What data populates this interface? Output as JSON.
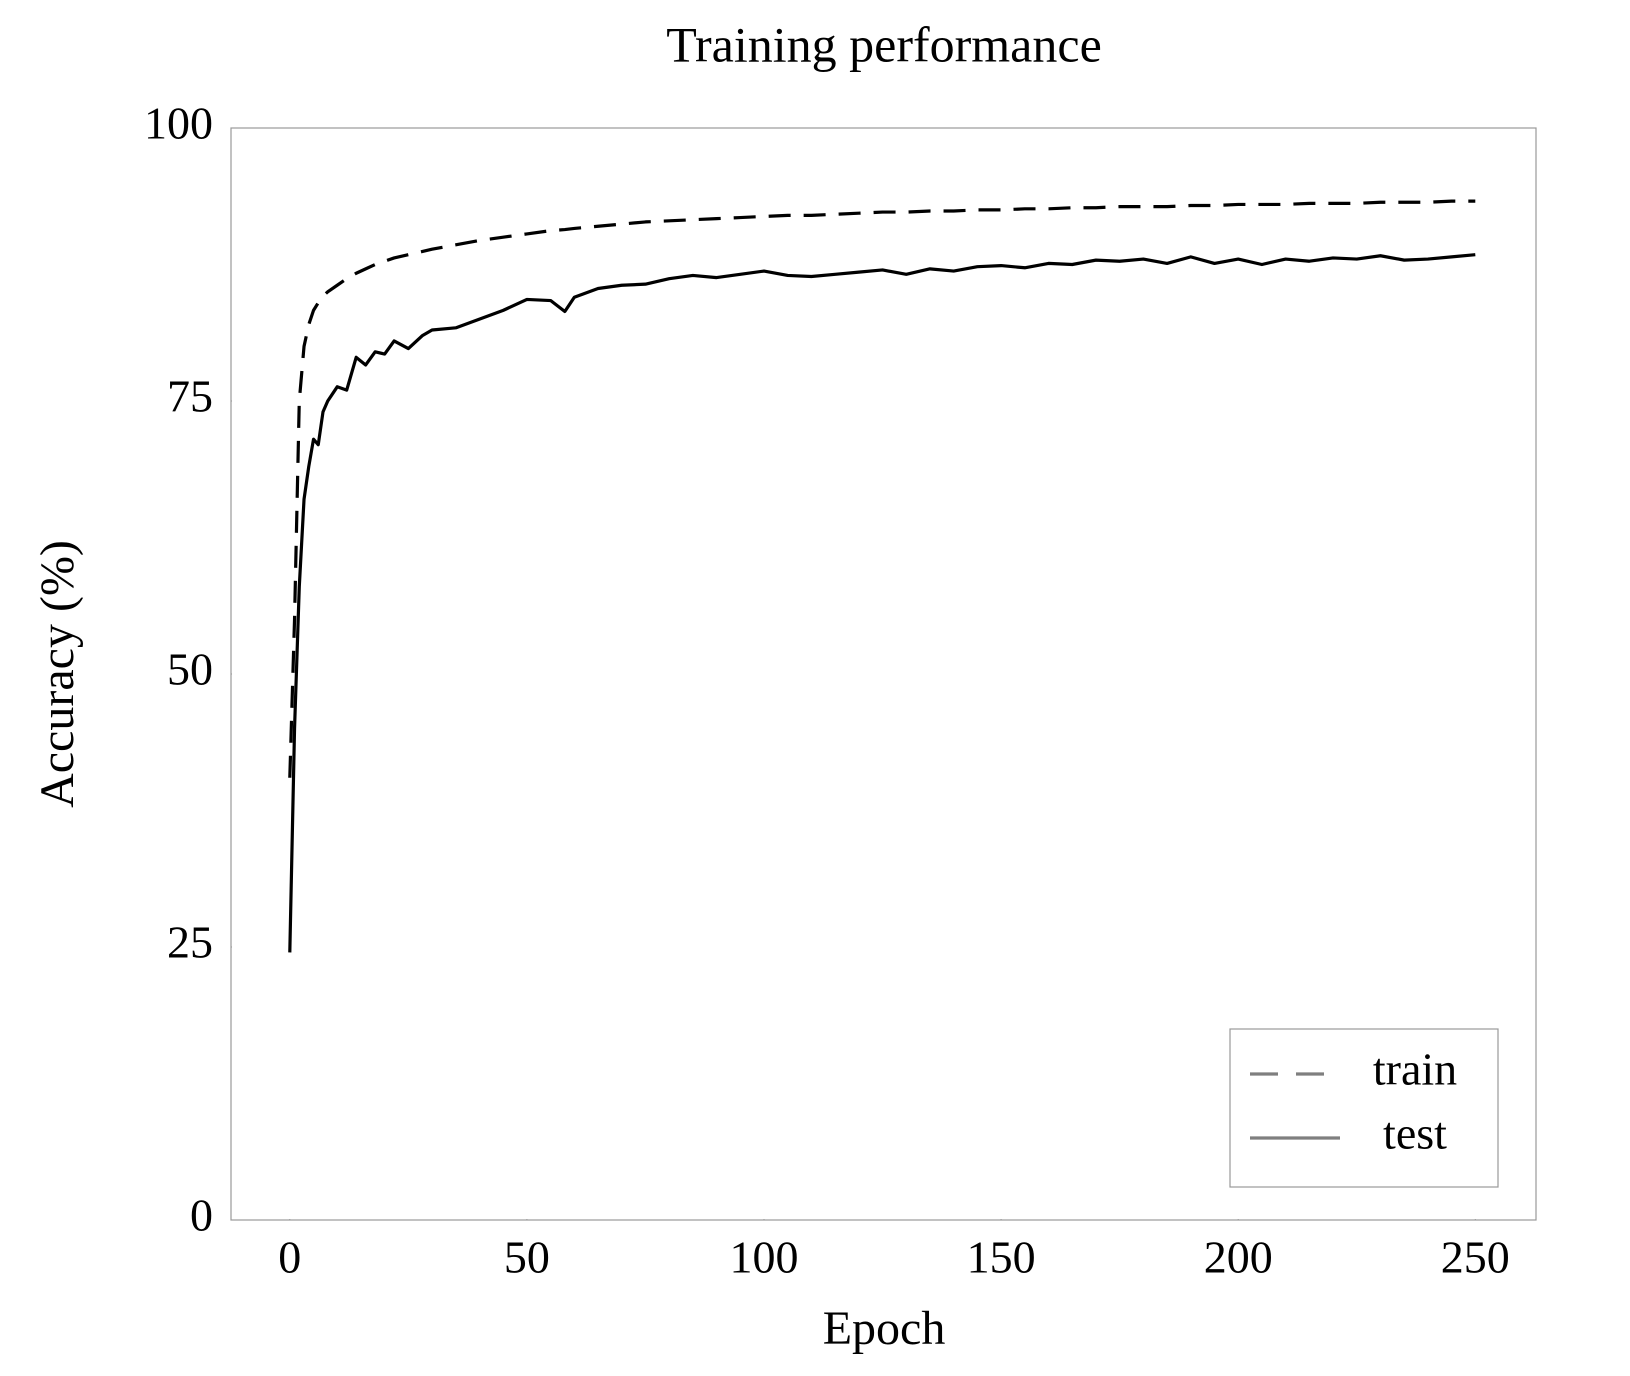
{
  "chart_data": {
    "type": "line",
    "title": "Training performance",
    "x_label": "Epoch",
    "y_label": "Accuracy (%)",
    "x": [
      0,
      1,
      2,
      3,
      4,
      5,
      6,
      7,
      8,
      10,
      12,
      14,
      16,
      18,
      20,
      22,
      25,
      28,
      30,
      35,
      40,
      45,
      50,
      55,
      58,
      60,
      65,
      70,
      75,
      80,
      85,
      90,
      95,
      100,
      105,
      110,
      115,
      120,
      125,
      130,
      135,
      140,
      145,
      150,
      155,
      160,
      165,
      170,
      175,
      180,
      185,
      190,
      195,
      200,
      205,
      210,
      215,
      220,
      225,
      230,
      235,
      240,
      245,
      250
    ],
    "series": [
      {
        "name": "train",
        "color": "#000000",
        "dash": true,
        "values": [
          40.5,
          55,
          75,
          80,
          82,
          83.3,
          84,
          84.6,
          85,
          85.6,
          86.2,
          86.7,
          87.1,
          87.5,
          87.8,
          88.1,
          88.4,
          88.7,
          88.9,
          89.3,
          89.7,
          90,
          90.3,
          90.6,
          90.7,
          90.8,
          91,
          91.2,
          91.4,
          91.5,
          91.6,
          91.7,
          91.8,
          91.9,
          92,
          92,
          92.1,
          92.2,
          92.3,
          92.3,
          92.4,
          92.4,
          92.5,
          92.5,
          92.6,
          92.6,
          92.7,
          92.7,
          92.8,
          92.8,
          92.8,
          92.9,
          92.9,
          93,
          93,
          93,
          93.1,
          93.1,
          93.1,
          93.2,
          93.2,
          93.2,
          93.3,
          93.3
        ]
      },
      {
        "name": "test",
        "color": "#000000",
        "dash": false,
        "values": [
          24.5,
          45,
          58,
          66,
          69,
          71.5,
          71,
          74,
          75,
          76.3,
          76,
          79,
          78.3,
          79.5,
          79.3,
          80.5,
          79.8,
          81,
          81.5,
          81.7,
          82.5,
          83.3,
          84.3,
          84.2,
          83.2,
          84.5,
          85.3,
          85.6,
          85.7,
          86.2,
          86.5,
          86.3,
          86.6,
          86.9,
          86.5,
          86.4,
          86.6,
          86.8,
          87,
          86.6,
          87.1,
          86.9,
          87.3,
          87.4,
          87.2,
          87.6,
          87.5,
          87.9,
          87.8,
          88,
          87.6,
          88.2,
          87.6,
          88,
          87.5,
          88,
          87.8,
          88.1,
          88,
          88.3,
          87.9,
          88,
          88.2,
          88.4
        ]
      }
    ],
    "xlim": [
      -12.4,
      262.8
    ],
    "ylim": [
      0,
      100
    ],
    "xticks": [
      0,
      50,
      100,
      150,
      200,
      250
    ],
    "yticks": [
      0,
      25,
      50,
      75,
      100
    ],
    "grid": false,
    "legend": "lower right"
  }
}
